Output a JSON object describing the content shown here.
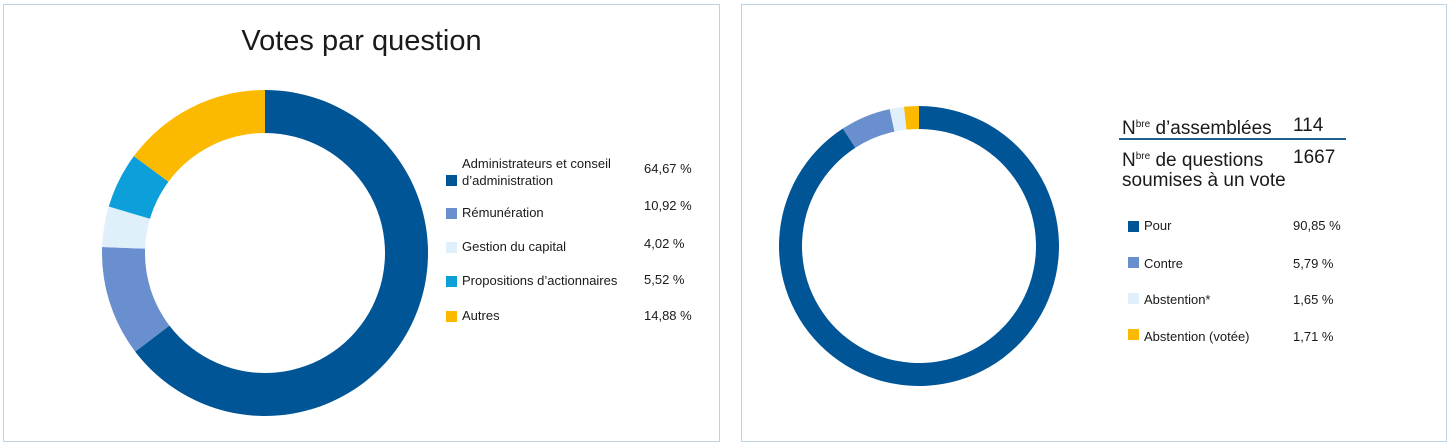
{
  "colors": {
    "dark_blue": "#005596",
    "medium_blue": "#6a8fcf",
    "light_blue": "#dff0fb",
    "cyan": "#0d9fd9",
    "yellow": "#fbb900"
  },
  "chart_data": [
    {
      "type": "pie",
      "title": "Votes par question",
      "series": [
        {
          "name": "Administrateurs et conseil d’administration",
          "value": 64.67,
          "label": "64,67 %",
          "color": "#005596"
        },
        {
          "name": "Rémunération",
          "value": 10.92,
          "label": "10,92 %",
          "color": "#6a8fcf"
        },
        {
          "name": "Gestion du capital",
          "value": 4.02,
          "label": "4,02 %",
          "color": "#dff0fb"
        },
        {
          "name": "Propositions d’actionnaires",
          "value": 5.52,
          "label": "5,52 %",
          "color": "#0d9fd9"
        },
        {
          "name": "Autres",
          "value": 14.88,
          "label": "14,88 %",
          "color": "#fbb900"
        }
      ]
    },
    {
      "type": "pie",
      "title": "",
      "series": [
        {
          "name": "Pour",
          "value": 90.85,
          "label": "90,85 %",
          "color": "#005596"
        },
        {
          "name": "Contre",
          "value": 5.79,
          "label": "5,79 %",
          "color": "#6a8fcf"
        },
        {
          "name": "Abstention*",
          "value": 1.65,
          "label": "1,65 %",
          "color": "#dff0fb"
        },
        {
          "name": "Abstention (votée)",
          "value": 1.71,
          "label": "1,71 %",
          "color": "#fbb900"
        }
      ]
    }
  ],
  "stats": {
    "assemblees": {
      "prefix": "N",
      "sup": "bre",
      "label": " d’assemblées",
      "value": "114"
    },
    "questions": {
      "prefix": "N",
      "sup": "bre",
      "label_line1": " de questions",
      "label_line2": "soumises à un vote",
      "value": "1667"
    }
  }
}
